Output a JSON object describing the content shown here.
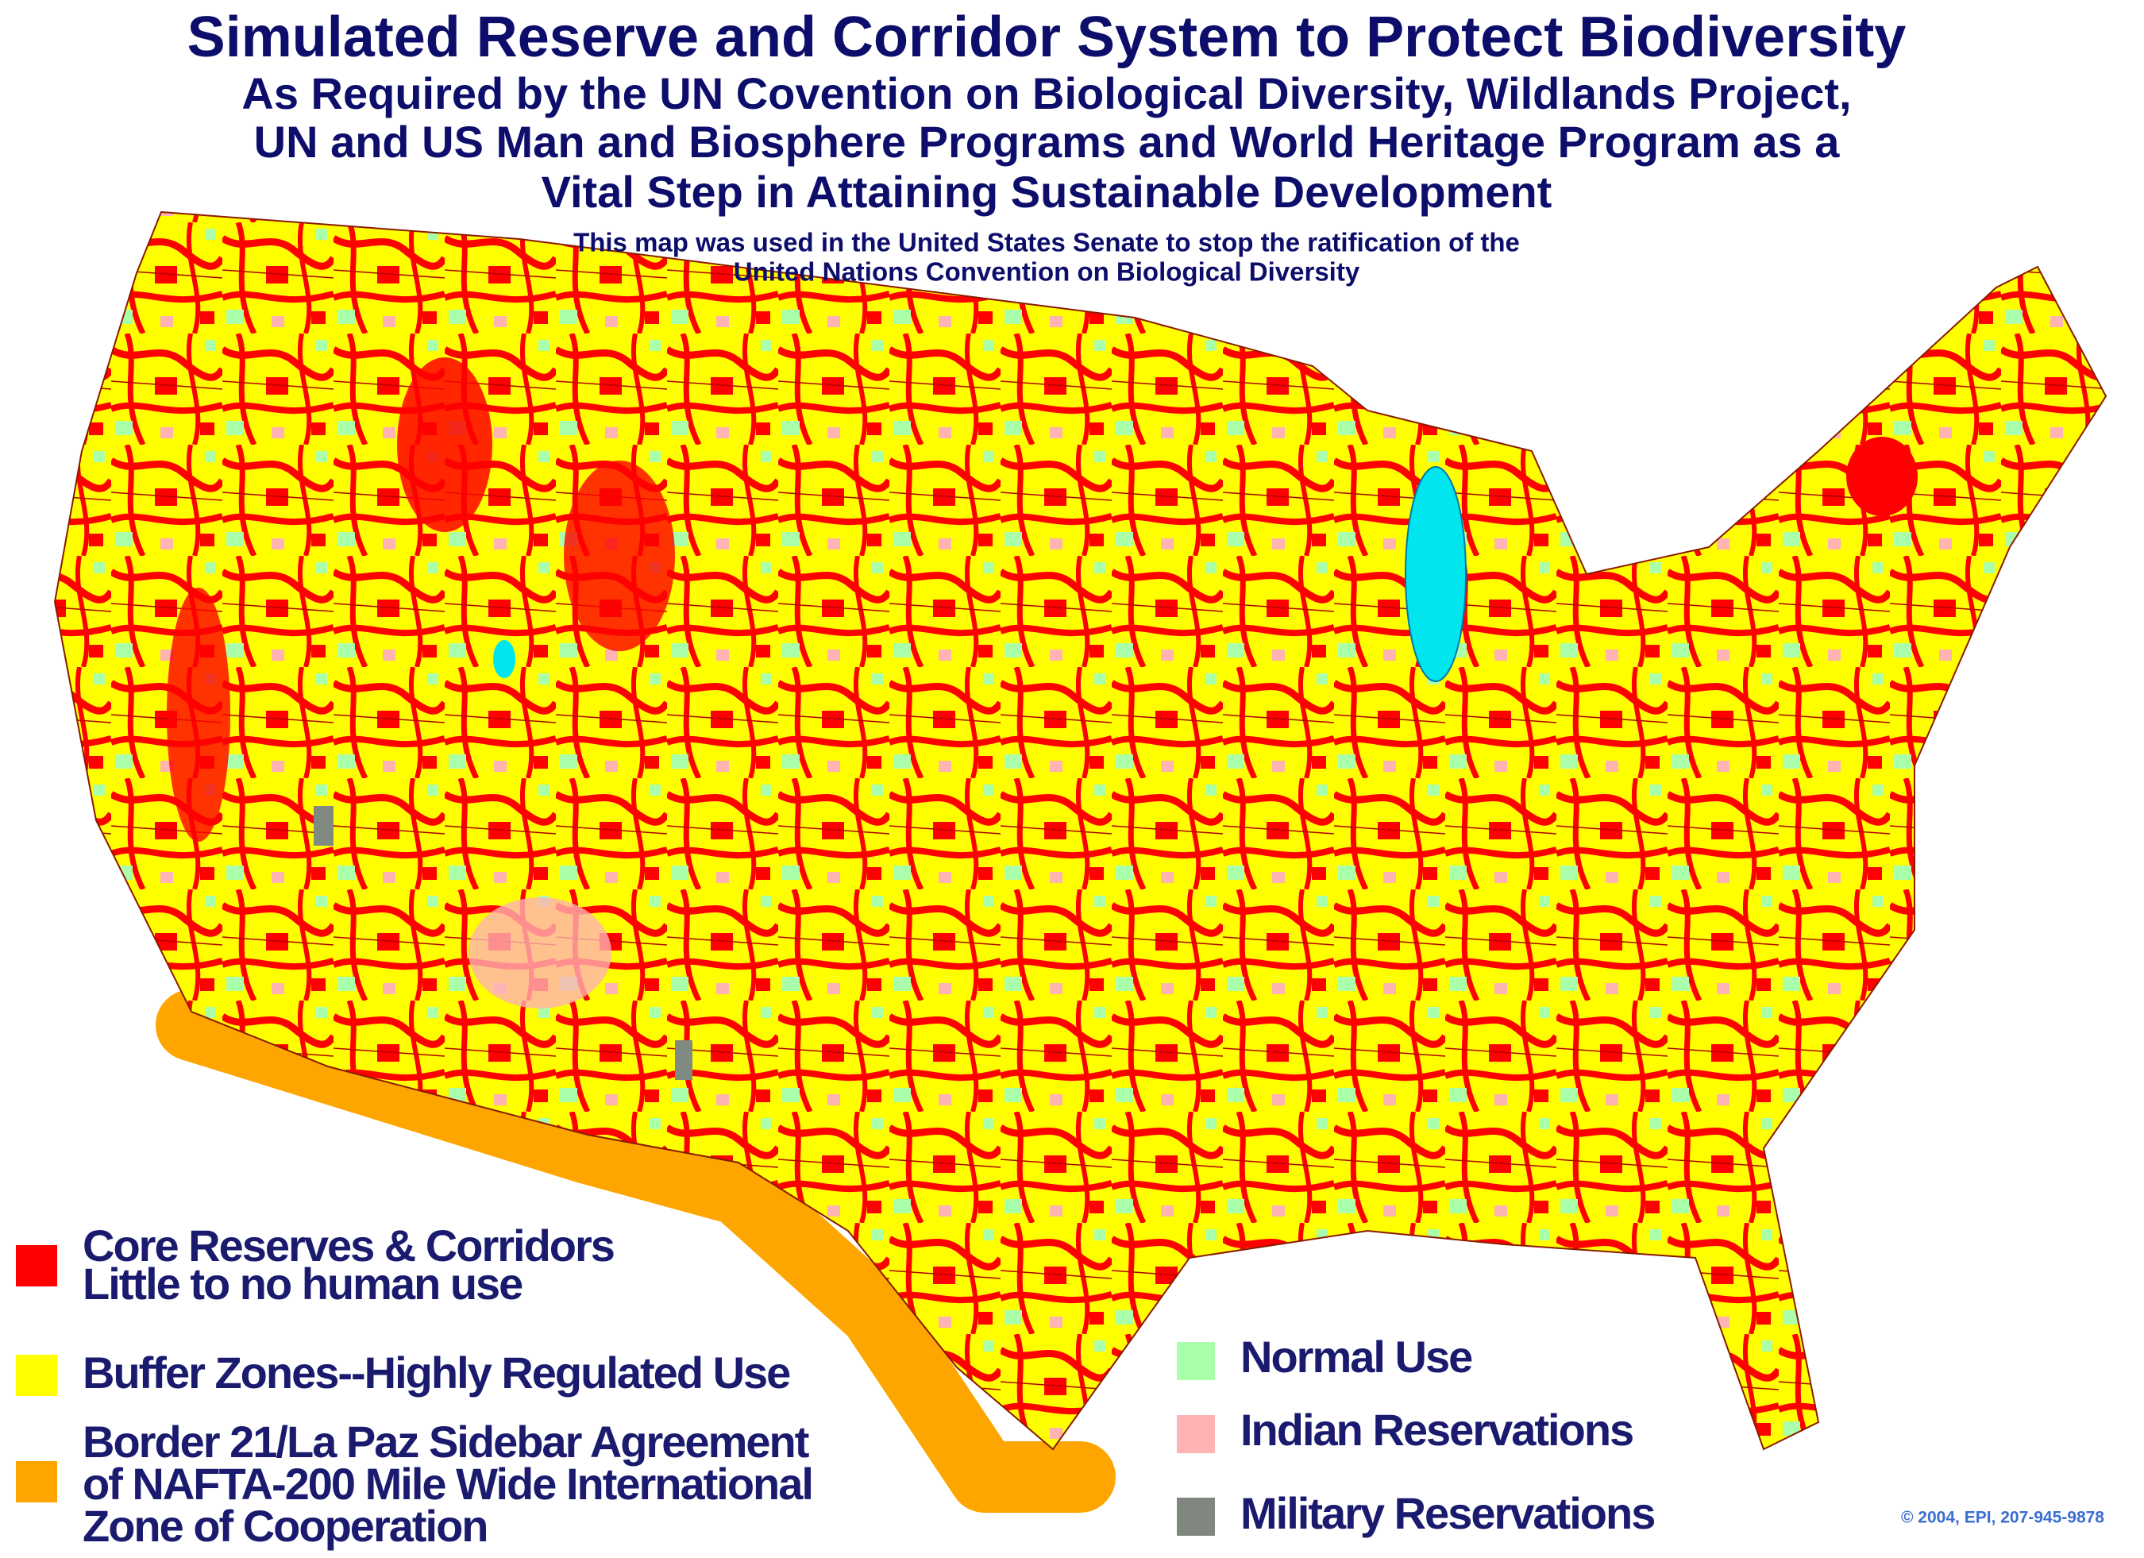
{
  "header": {
    "title": "Simulated Reserve and Corridor System to Protect Biodiversity",
    "subtitle_lines": [
      "As Required by the UN Covention on Biological Diversity, Wildlands Project,",
      "UN and US Man and Biosphere Programs and World Heritage Program as a",
      "Vital Step in Attaining Sustainable Development"
    ],
    "note_lines": [
      "This map was used in the United States Senate to stop the ratification of the",
      "United Nations Convention on Biological Diversity"
    ]
  },
  "legend": [
    {
      "label_lines": [
        "Core Reserves & Corridors",
        "Little to no human use"
      ]
    },
    {
      "label_lines": [
        "Buffer Zones--Highly Regulated Use"
      ]
    },
    {
      "label_lines": [
        "Border 21/La Paz Sidebar Agreement",
        "of NAFTA-200 Mile Wide International",
        "Zone of Cooperation"
      ]
    },
    {
      "label_lines": [
        "Normal Use"
      ]
    },
    {
      "label_lines": [
        "Indian Reservations"
      ]
    },
    {
      "label_lines": [
        "Military Reservations"
      ]
    }
  ],
  "footer": {
    "copyright": "© 2004, EPI, 207-945-9878"
  }
}
